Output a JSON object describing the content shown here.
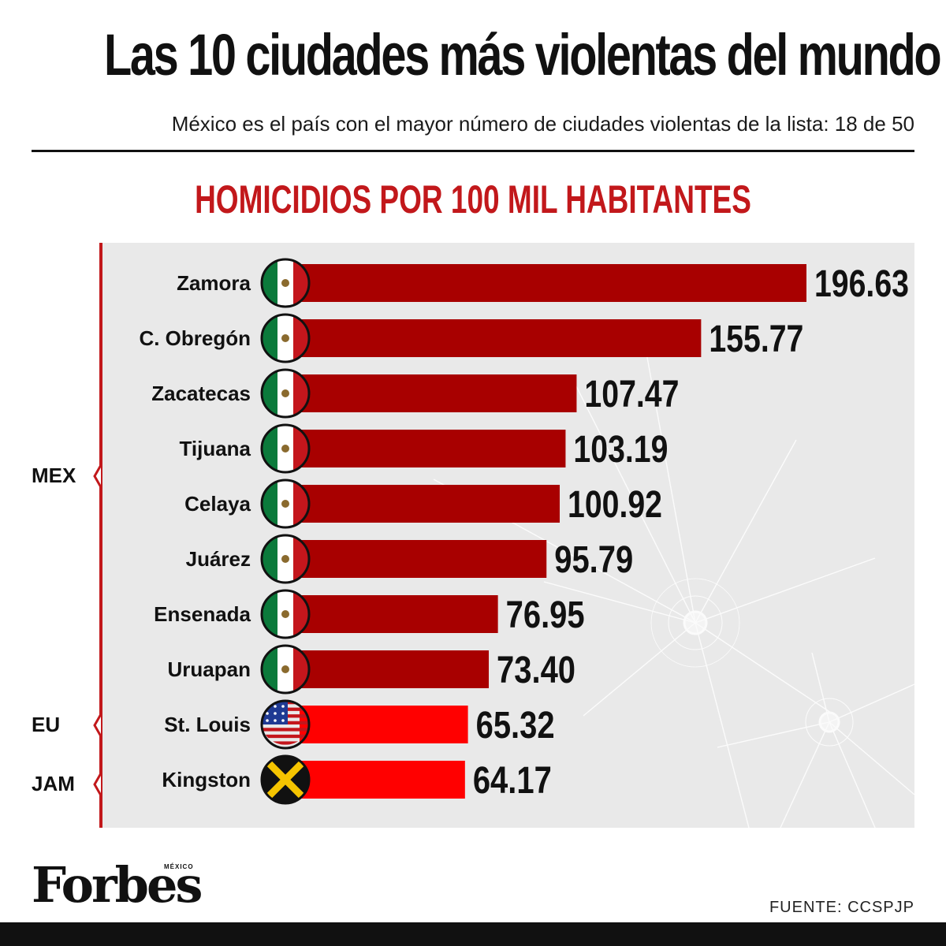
{
  "header": {
    "title": "Las 10 ciudades más violentas del mundo",
    "subtitle": "México es el país con el mayor número de ciudades violentas de la lista: 18 de 50"
  },
  "groups": [
    {
      "label": "MEX"
    },
    {
      "label": "EU"
    },
    {
      "label": "JAM"
    }
  ],
  "chart_data": {
    "type": "bar",
    "orientation": "horizontal",
    "title": "HOMICIDIOS POR 100 MIL HABITANTES",
    "categories": [
      "Zamora",
      "C. Obregón",
      "Zacatecas",
      "Tijuana",
      "Celaya",
      "Juárez",
      "Ensenada",
      "Uruapan",
      "St. Louis",
      "Kingston"
    ],
    "values": [
      196.63,
      155.77,
      107.47,
      103.19,
      100.92,
      95.79,
      76.95,
      73.4,
      65.32,
      64.17
    ],
    "value_labels": [
      "196.63",
      "155.77",
      "107.47",
      "103.19",
      "100.92",
      "95.79",
      "76.95",
      "73.40",
      "65.32",
      "64.17"
    ],
    "countries": [
      "MEX",
      "MEX",
      "MEX",
      "MEX",
      "MEX",
      "MEX",
      "MEX",
      "MEX",
      "EU",
      "JAM"
    ],
    "flags": [
      "mexico-flag-icon",
      "mexico-flag-icon",
      "mexico-flag-icon",
      "mexico-flag-icon",
      "mexico-flag-icon",
      "mexico-flag-icon",
      "mexico-flag-icon",
      "mexico-flag-icon",
      "usa-flag-icon",
      "jamaica-flag-icon"
    ],
    "bar_colors": [
      "#a80000",
      "#a80000",
      "#a80000",
      "#a80000",
      "#a80000",
      "#a80000",
      "#a80000",
      "#a80000",
      "#ff0000",
      "#ff0000"
    ],
    "xlabel": "",
    "ylabel": ""
  },
  "footer": {
    "brand": "Forbes",
    "brand_country": "MÉXICO",
    "source": "FUENTE: CCSPJP"
  },
  "colors": {
    "accent": "#c2181b",
    "bar_mex": "#a80000",
    "bar_other": "#ff0000",
    "panel": "#e9e9e9"
  }
}
